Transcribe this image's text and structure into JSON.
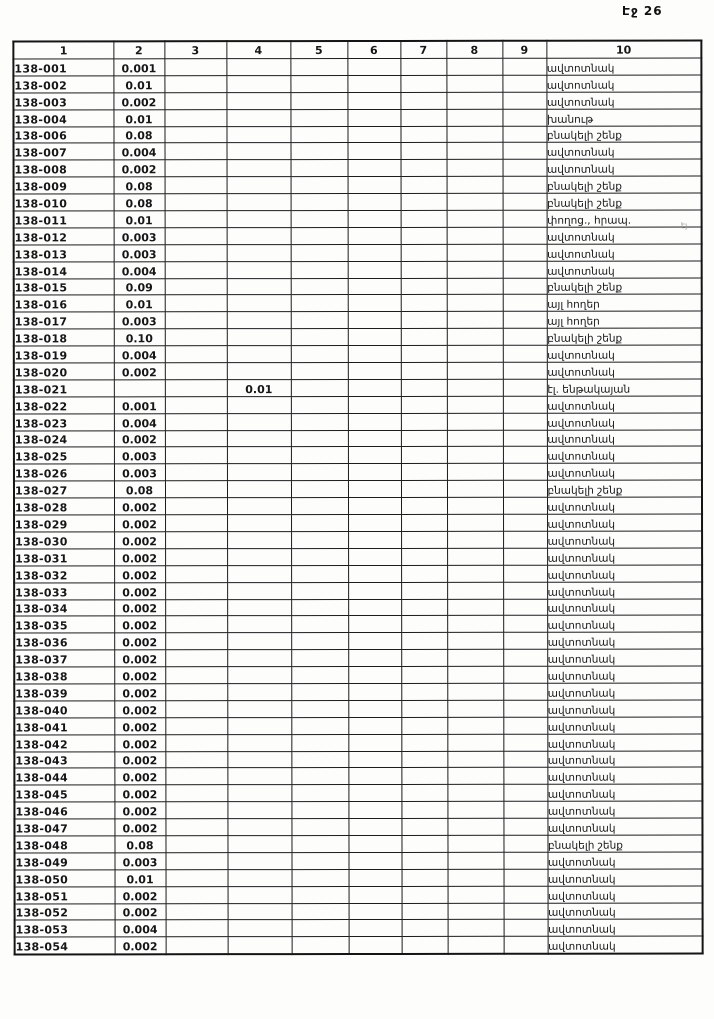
{
  "page": {
    "label": "Էջ 26"
  },
  "margin_note": "էյ",
  "table": {
    "columns": [
      "1",
      "2",
      "3",
      "4",
      "5",
      "6",
      "7",
      "8",
      "9",
      "10"
    ],
    "rows": [
      {
        "id": "138-001",
        "area": "0.001",
        "usage": "ավտոտնակ"
      },
      {
        "id": "138-002",
        "area": "0.01",
        "usage": "ավտոտնակ"
      },
      {
        "id": "138-003",
        "area": "0.002",
        "usage": "ավտոտնակ"
      },
      {
        "id": "138-004",
        "area": "0.01",
        "usage": "խանութ"
      },
      {
        "id": "138-006",
        "area": "0.08",
        "usage": "բնակելի շենք"
      },
      {
        "id": "138-007",
        "area": "0.004",
        "usage": "ավտոտնակ"
      },
      {
        "id": "138-008",
        "area": "0.002",
        "usage": "ավտոտնակ"
      },
      {
        "id": "138-009",
        "area": "0.08",
        "usage": "բնակելի շենք"
      },
      {
        "id": "138-010",
        "area": "0.08",
        "usage": "բնակելի շենք"
      },
      {
        "id": "138-011",
        "area": "0.01",
        "usage": "փողոց., հրապ."
      },
      {
        "id": "138-012",
        "area": "0.003",
        "usage": "ավտոտնակ"
      },
      {
        "id": "138-013",
        "area": "0.003",
        "usage": "ավտոտնակ"
      },
      {
        "id": "138-014",
        "area": "0.004",
        "usage": "ավտոտնակ"
      },
      {
        "id": "138-015",
        "area": "0.09",
        "usage": "բնակելի շենք"
      },
      {
        "id": "138-016",
        "area": "0.01",
        "usage": "այլ հողեր"
      },
      {
        "id": "138-017",
        "area": "0.003",
        "usage": "այլ հողեր"
      },
      {
        "id": "138-018",
        "area": "0.10",
        "usage": "բնակելի շենք"
      },
      {
        "id": "138-019",
        "area": "0.004",
        "usage": "ավտոտնակ"
      },
      {
        "id": "138-020",
        "area": "0.002",
        "usage": "ավտոտնակ"
      },
      {
        "id": "138-021",
        "area": "",
        "col4": "0.01",
        "usage": "էլ. ենթակայան"
      },
      {
        "id": "138-022",
        "area": "0.001",
        "usage": "ավտոտնակ"
      },
      {
        "id": "138-023",
        "area": "0.004",
        "usage": "ավտոտնակ"
      },
      {
        "id": "138-024",
        "area": "0.002",
        "usage": "ավտոտնակ"
      },
      {
        "id": "138-025",
        "area": "0.003",
        "usage": "ավտոտնակ"
      },
      {
        "id": "138-026",
        "area": "0.003",
        "usage": "ավտոտնակ"
      },
      {
        "id": "138-027",
        "area": "0.08",
        "usage": "բնակելի շենք"
      },
      {
        "id": "138-028",
        "area": "0.002",
        "usage": "ավտոտնակ"
      },
      {
        "id": "138-029",
        "area": "0.002",
        "usage": "ավտոտնակ"
      },
      {
        "id": "138-030",
        "area": "0.002",
        "usage": "ավտոտնակ"
      },
      {
        "id": "138-031",
        "area": "0.002",
        "usage": "ավտոտնակ"
      },
      {
        "id": "138-032",
        "area": "0.002",
        "usage": "ավտոտնակ"
      },
      {
        "id": "138-033",
        "area": "0.002",
        "usage": "ավտոտնակ"
      },
      {
        "id": "138-034",
        "area": "0.002",
        "usage": "ավտոտնակ"
      },
      {
        "id": "138-035",
        "area": "0.002",
        "usage": "ավտոտնակ"
      },
      {
        "id": "138-036",
        "area": "0.002",
        "usage": "ավտոտնակ"
      },
      {
        "id": "138-037",
        "area": "0.002",
        "usage": "ավտոտնակ"
      },
      {
        "id": "138-038",
        "area": "0.002",
        "usage": "ավտոտնակ"
      },
      {
        "id": "138-039",
        "area": "0.002",
        "usage": "ավտոտնակ"
      },
      {
        "id": "138-040",
        "area": "0.002",
        "usage": "ավտոտնակ"
      },
      {
        "id": "138-041",
        "area": "0.002",
        "usage": "ավտոտնակ"
      },
      {
        "id": "138-042",
        "area": "0.002",
        "usage": "ավտոտնակ"
      },
      {
        "id": "138-043",
        "area": "0.002",
        "usage": "ավտոտնակ"
      },
      {
        "id": "138-044",
        "area": "0.002",
        "usage": "ավտոտնակ"
      },
      {
        "id": "138-045",
        "area": "0.002",
        "usage": "ավտոտնակ"
      },
      {
        "id": "138-046",
        "area": "0.002",
        "usage": "ավտոտնակ"
      },
      {
        "id": "138-047",
        "area": "0.002",
        "usage": "ավտոտնակ"
      },
      {
        "id": "138-048",
        "area": "0.08",
        "usage": "բնակելի շենք"
      },
      {
        "id": "138-049",
        "area": "0.003",
        "usage": "ավտոտնակ"
      },
      {
        "id": "138-050",
        "area": "0.01",
        "usage": "ավտոտնակ"
      },
      {
        "id": "138-051",
        "area": "0.002",
        "usage": "ավտոտնակ"
      },
      {
        "id": "138-052",
        "area": "0.002",
        "usage": "ավտոտնակ"
      },
      {
        "id": "138-053",
        "area": "0.004",
        "usage": "ավտոտնակ"
      },
      {
        "id": "138-054",
        "area": "0.002",
        "usage": "ավտոտնակ"
      }
    ]
  }
}
